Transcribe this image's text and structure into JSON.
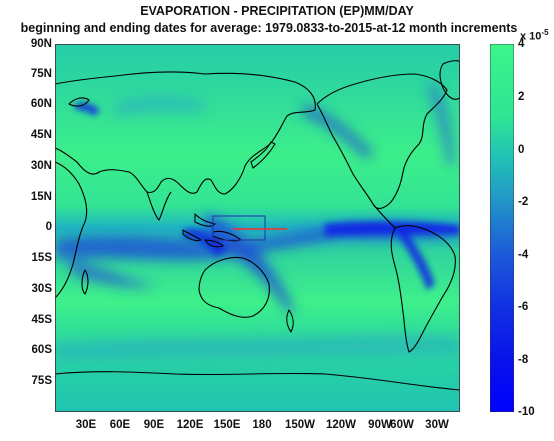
{
  "title_line1": "EVAPORATION - PRECIPITATION (EP)MM/DAY",
  "title_line2": "beginning and ending dates for average:  1979.0833-to-2015-at-12 month increments",
  "lat_labels": [
    "90N",
    "75N",
    "60N",
    "45N",
    "30N",
    "15N",
    "0",
    "15S",
    "30S",
    "45S",
    "60S",
    "75S"
  ],
  "lon_labels": [
    "30E",
    "60E",
    "90E",
    "120E",
    "150E",
    "180",
    "150W",
    "120W",
    "90W",
    "60W",
    "30W"
  ],
  "colorbar": {
    "exponent_base": "x 10",
    "exponent_power": "-5",
    "ticks": [
      "4",
      "2",
      "0",
      "-2",
      "-4",
      "-6",
      "-8",
      "-10"
    ],
    "range": [
      -10,
      4
    ],
    "colors": {
      "high": "#3df58a",
      "mid": "#1fb8c0",
      "low": "#0a0ae6",
      "bottom": "#0000ff"
    }
  },
  "colors": {
    "ocean_dry": "#34ec8c",
    "ocean_mid": "#22c9b4",
    "wet": "#1a50d8",
    "very_wet": "#0a1ee6",
    "coast": "#000000",
    "box": "#2233aa",
    "line": "#ff2a2a"
  }
}
